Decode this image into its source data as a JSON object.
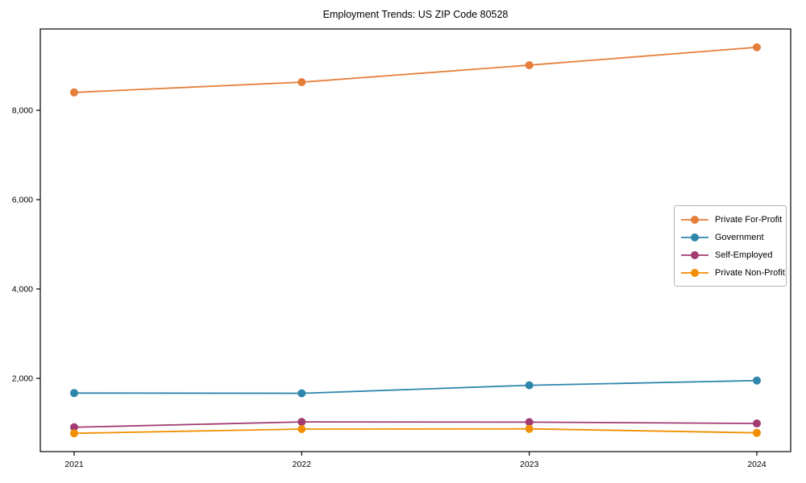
{
  "chart_data": {
    "type": "line",
    "title": "Employment Trends: US ZIP Code 80528",
    "x": [
      "2021",
      "2022",
      "2023",
      "2024"
    ],
    "series": [
      {
        "name": "Private For-Profit",
        "color": "#E67E3B",
        "values": [
          8400,
          8630,
          9010,
          9410
        ]
      },
      {
        "name": "Government",
        "color": "#2E86AB",
        "values": [
          1670,
          1665,
          1845,
          1950
        ]
      },
      {
        "name": "Self-Employed",
        "color": "#A23B72",
        "values": [
          905,
          1025,
          1020,
          990
        ]
      },
      {
        "name": "Private Non-Profit",
        "color": "#F18F01",
        "values": [
          770,
          865,
          870,
          780
        ]
      }
    ],
    "ylabel": "",
    "xlabel": "",
    "yticks": [
      2000,
      4000,
      6000,
      8000
    ],
    "ytick_labels": [
      "2,000",
      "4,000",
      "6,000",
      "8,000"
    ],
    "ylim": [
      360,
      9820
    ],
    "grid": false,
    "legend_position": "center-right",
    "marker": "circle",
    "axis_color": "#000000",
    "background_color": "#ffffff"
  }
}
